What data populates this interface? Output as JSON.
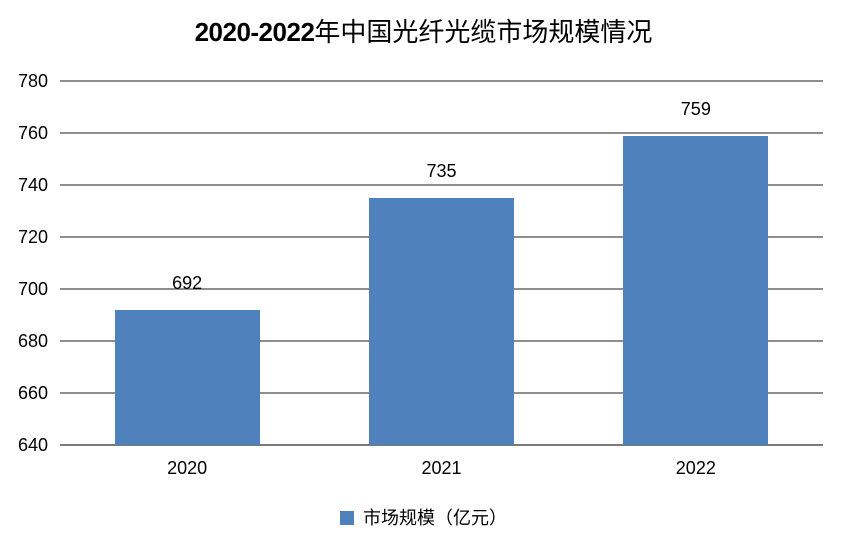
{
  "title": {
    "prefix": "2020-2022",
    "suffix": "年中国光纤光缆市场规模情况",
    "full": "2020-2022年中国光纤光缆市场规模情况"
  },
  "legend": {
    "label": "市场规模（亿元）"
  },
  "colors": {
    "bar": "#4F81BD",
    "gridline": "#8e8e8e",
    "axis_line": "#7a7a7a",
    "text": "#000000",
    "background": "#ffffff"
  },
  "chart_data": {
    "type": "bar",
    "title": "2020-2022年中国光纤光缆市场规模情况",
    "categories": [
      "2020",
      "2021",
      "2022"
    ],
    "series": [
      {
        "name": "市场规模（亿元）",
        "values": [
          692,
          735,
          759
        ]
      }
    ],
    "value_labels": [
      "692",
      "735",
      "759"
    ],
    "xlabel": "",
    "ylabel": "",
    "ylim": [
      640,
      780
    ],
    "yticks": [
      640,
      660,
      680,
      700,
      720,
      740,
      760,
      780
    ],
    "grid": true,
    "legend_position": "bottom",
    "legend_entries": [
      "市场规模（亿元）"
    ]
  }
}
